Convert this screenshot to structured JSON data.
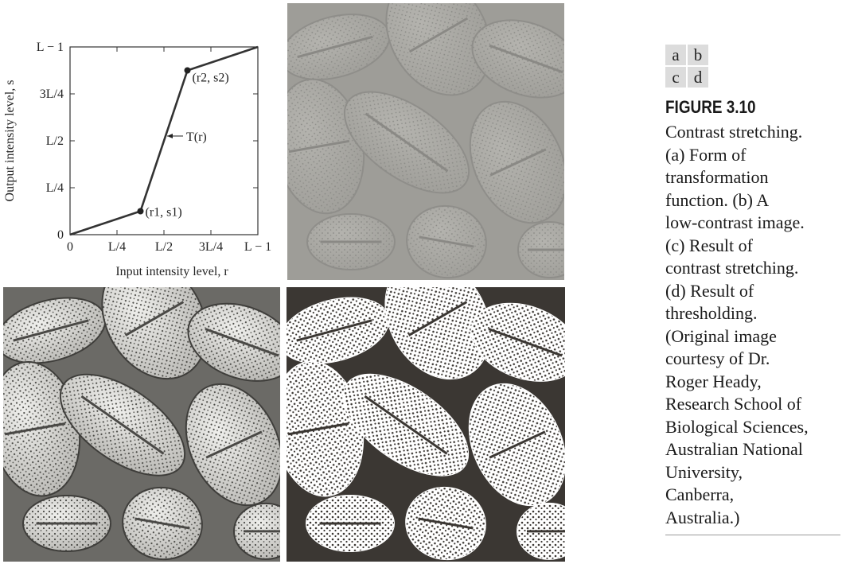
{
  "panel_labels": [
    "a",
    "b",
    "c",
    "d"
  ],
  "figure": {
    "title": "FIGURE 3.10",
    "caption_lines": [
      "Contrast stretching.",
      "(a) Form of",
      "transformation",
      "function. (b) A",
      "low-contrast image.",
      "(c) Result of",
      "contrast stretching.",
      "(d) Result of",
      "thresholding.",
      "(Original image",
      "courtesy of Dr.",
      "Roger Heady,",
      "Research School of",
      "Biological Sciences,",
      "Australian National",
      "University,",
      "Canberra,",
      "Australia.)"
    ]
  },
  "chart_data": {
    "type": "line",
    "xlabel": "Input intensity level, r",
    "ylabel": "Output intensity level, s",
    "x_ticks": [
      "0",
      "L/4",
      "L/2",
      "3L/4",
      "L − 1"
    ],
    "y_ticks": [
      "0",
      "L/4",
      "L/2",
      "3L/4",
      "L − 1"
    ],
    "xlim": [
      0,
      1
    ],
    "ylim": [
      0,
      1
    ],
    "series": [
      {
        "x": [
          0,
          0.375,
          0.625,
          1
        ],
        "y": [
          0,
          0.125,
          0.875,
          1
        ]
      }
    ],
    "annotations": {
      "curve_label": "T(r)",
      "point1_label": "(r1, s1)",
      "point2_label": "(r2, s2)"
    }
  },
  "images": {
    "b": "low-contrast image",
    "c": "contrast stretched image",
    "d": "thresholded image"
  }
}
